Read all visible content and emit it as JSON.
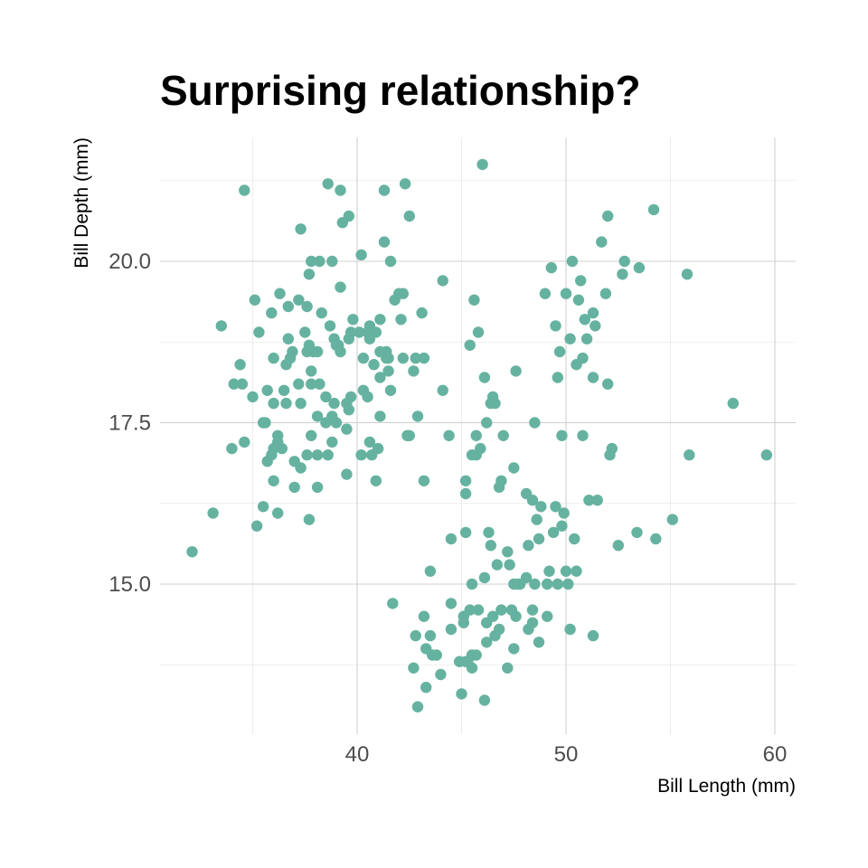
{
  "chart_data": {
    "type": "scatter",
    "title": "Surprising relationship?",
    "xlabel": "Bill Length (mm)",
    "ylabel": "Bill Depth (mm)",
    "xlim": [
      31.5,
      61
    ],
    "ylim": [
      13.1,
      21.5
    ],
    "x_ticks": [
      40,
      50,
      60
    ],
    "x_tick_labels": [
      "40",
      "50",
      "60"
    ],
    "y_ticks": [
      15.0,
      17.5,
      20.0
    ],
    "y_tick_labels": [
      "15.0",
      "17.5",
      "20.0"
    ],
    "grid": true,
    "legend": "none",
    "point_color": "#66b2a0",
    "points": [
      [
        32.1,
        15.5
      ],
      [
        33.1,
        16.1
      ],
      [
        33.5,
        19.0
      ],
      [
        34.0,
        17.1
      ],
      [
        34.1,
        18.1
      ],
      [
        34.4,
        18.4
      ],
      [
        34.5,
        18.1
      ],
      [
        34.6,
        21.1
      ],
      [
        34.6,
        17.2
      ],
      [
        35.0,
        17.9
      ],
      [
        35.1,
        19.4
      ],
      [
        35.2,
        15.9
      ],
      [
        35.3,
        18.9
      ],
      [
        35.5,
        17.5
      ],
      [
        35.5,
        16.2
      ],
      [
        35.6,
        17.5
      ],
      [
        35.7,
        16.9
      ],
      [
        35.7,
        18.0
      ],
      [
        35.9,
        17.0
      ],
      [
        35.9,
        19.2
      ],
      [
        36.0,
        17.8
      ],
      [
        36.0,
        17.1
      ],
      [
        36.0,
        16.6
      ],
      [
        36.0,
        18.5
      ],
      [
        36.2,
        17.2
      ],
      [
        36.2,
        17.3
      ],
      [
        36.2,
        16.1
      ],
      [
        36.3,
        19.5
      ],
      [
        36.4,
        17.1
      ],
      [
        36.5,
        18.0
      ],
      [
        36.6,
        17.8
      ],
      [
        36.6,
        18.4
      ],
      [
        36.7,
        18.8
      ],
      [
        36.7,
        19.3
      ],
      [
        36.8,
        18.5
      ],
      [
        36.9,
        18.6
      ],
      [
        37.0,
        16.9
      ],
      [
        37.0,
        16.5
      ],
      [
        37.2,
        18.1
      ],
      [
        37.2,
        19.4
      ],
      [
        37.3,
        20.5
      ],
      [
        37.3,
        16.8
      ],
      [
        37.3,
        17.8
      ],
      [
        37.5,
        18.9
      ],
      [
        37.6,
        19.3
      ],
      [
        37.6,
        17.0
      ],
      [
        37.6,
        18.6
      ],
      [
        37.7,
        18.7
      ],
      [
        37.7,
        19.8
      ],
      [
        37.7,
        16.0
      ],
      [
        37.8,
        18.3
      ],
      [
        37.8,
        20.0
      ],
      [
        37.8,
        17.3
      ],
      [
        37.8,
        18.1
      ],
      [
        37.9,
        18.6
      ],
      [
        38.1,
        18.6
      ],
      [
        38.1,
        17.0
      ],
      [
        38.1,
        16.5
      ],
      [
        38.1,
        17.6
      ],
      [
        38.2,
        18.1
      ],
      [
        38.2,
        20.0
      ],
      [
        38.3,
        19.2
      ],
      [
        38.5,
        17.9
      ],
      [
        38.5,
        17.5
      ],
      [
        38.6,
        21.2
      ],
      [
        38.6,
        17.0
      ],
      [
        38.7,
        19.0
      ],
      [
        38.8,
        20.0
      ],
      [
        38.8,
        17.2
      ],
      [
        38.8,
        17.6
      ],
      [
        38.9,
        17.8
      ],
      [
        38.9,
        18.8
      ],
      [
        39.0,
        17.5
      ],
      [
        39.0,
        18.7
      ],
      [
        39.1,
        18.7
      ],
      [
        39.2,
        19.6
      ],
      [
        39.2,
        21.1
      ],
      [
        39.2,
        18.6
      ],
      [
        39.3,
        20.6
      ],
      [
        39.5,
        16.7
      ],
      [
        39.5,
        17.4
      ],
      [
        39.5,
        17.8
      ],
      [
        39.6,
        17.7
      ],
      [
        39.6,
        18.8
      ],
      [
        39.6,
        20.7
      ],
      [
        39.7,
        18.9
      ],
      [
        39.7,
        17.9
      ],
      [
        39.8,
        19.1
      ],
      [
        40.1,
        18.9
      ],
      [
        40.2,
        17.0
      ],
      [
        40.2,
        20.1
      ],
      [
        40.3,
        18.0
      ],
      [
        40.3,
        18.5
      ],
      [
        40.5,
        18.9
      ],
      [
        40.5,
        17.9
      ],
      [
        40.6,
        18.8
      ],
      [
        40.6,
        19.0
      ],
      [
        40.6,
        17.2
      ],
      [
        40.7,
        17.0
      ],
      [
        40.8,
        18.4
      ],
      [
        40.8,
        18.9
      ],
      [
        40.9,
        16.6
      ],
      [
        40.9,
        18.9
      ],
      [
        41.0,
        17.1
      ],
      [
        41.1,
        17.6
      ],
      [
        41.1,
        18.2
      ],
      [
        41.1,
        19.1
      ],
      [
        41.1,
        18.6
      ],
      [
        41.3,
        20.3
      ],
      [
        41.3,
        21.1
      ],
      [
        41.4,
        18.6
      ],
      [
        41.4,
        18.5
      ],
      [
        41.5,
        18.3
      ],
      [
        41.5,
        18.5
      ],
      [
        41.6,
        18.0
      ],
      [
        41.6,
        20.0
      ],
      [
        41.7,
        14.7
      ],
      [
        41.8,
        19.4
      ],
      [
        42.0,
        19.5
      ],
      [
        42.1,
        19.1
      ],
      [
        42.2,
        18.5
      ],
      [
        42.2,
        19.5
      ],
      [
        42.3,
        21.2
      ],
      [
        42.4,
        17.3
      ],
      [
        42.5,
        20.7
      ],
      [
        42.5,
        17.3
      ],
      [
        42.7,
        18.3
      ],
      [
        42.7,
        13.7
      ],
      [
        42.8,
        18.5
      ],
      [
        42.8,
        14.2
      ],
      [
        42.9,
        17.6
      ],
      [
        42.9,
        13.1
      ],
      [
        43.1,
        19.2
      ],
      [
        43.2,
        18.5
      ],
      [
        43.2,
        16.6
      ],
      [
        43.2,
        14.5
      ],
      [
        43.3,
        14.0
      ],
      [
        43.3,
        13.4
      ],
      [
        43.5,
        15.2
      ],
      [
        43.5,
        14.2
      ],
      [
        43.6,
        13.9
      ],
      [
        43.8,
        13.9
      ],
      [
        44.0,
        13.6
      ],
      [
        44.1,
        19.7
      ],
      [
        44.1,
        18.0
      ],
      [
        44.4,
        17.3
      ],
      [
        44.5,
        15.7
      ],
      [
        44.5,
        14.3
      ],
      [
        44.5,
        14.7
      ],
      [
        44.9,
        13.8
      ],
      [
        45.0,
        13.3
      ],
      [
        45.1,
        14.5
      ],
      [
        45.1,
        14.4
      ],
      [
        45.2,
        15.8
      ],
      [
        45.2,
        16.6
      ],
      [
        45.2,
        16.4
      ],
      [
        45.2,
        13.8
      ],
      [
        45.3,
        13.8
      ],
      [
        45.4,
        14.6
      ],
      [
        45.4,
        18.7
      ],
      [
        45.5,
        13.9
      ],
      [
        45.5,
        13.7
      ],
      [
        45.5,
        15.0
      ],
      [
        45.5,
        17.0
      ],
      [
        45.6,
        19.4
      ],
      [
        45.7,
        13.9
      ],
      [
        45.7,
        17.0
      ],
      [
        45.7,
        17.3
      ],
      [
        45.8,
        14.6
      ],
      [
        45.8,
        18.9
      ],
      [
        45.9,
        17.1
      ],
      [
        46.0,
        21.5
      ],
      [
        46.1,
        18.2
      ],
      [
        46.1,
        15.1
      ],
      [
        46.1,
        13.2
      ],
      [
        46.2,
        14.1
      ],
      [
        46.2,
        14.4
      ],
      [
        46.2,
        17.5
      ],
      [
        46.3,
        15.8
      ],
      [
        46.4,
        15.6
      ],
      [
        46.4,
        17.8
      ],
      [
        46.5,
        17.9
      ],
      [
        46.5,
        14.5
      ],
      [
        46.6,
        17.8
      ],
      [
        46.6,
        14.2
      ],
      [
        46.7,
        15.3
      ],
      [
        46.8,
        14.3
      ],
      [
        46.8,
        16.5
      ],
      [
        46.9,
        16.6
      ],
      [
        46.9,
        14.6
      ],
      [
        47.0,
        17.3
      ],
      [
        47.2,
        15.5
      ],
      [
        47.2,
        13.7
      ],
      [
        47.3,
        15.3
      ],
      [
        47.4,
        14.6
      ],
      [
        47.5,
        14.0
      ],
      [
        47.5,
        15.0
      ],
      [
        47.5,
        16.8
      ],
      [
        47.6,
        14.5
      ],
      [
        47.6,
        18.3
      ],
      [
        47.7,
        15.0
      ],
      [
        47.8,
        15.0
      ],
      [
        48.1,
        15.1
      ],
      [
        48.1,
        16.4
      ],
      [
        48.2,
        14.3
      ],
      [
        48.2,
        15.6
      ],
      [
        48.4,
        14.6
      ],
      [
        48.4,
        16.3
      ],
      [
        48.4,
        14.4
      ],
      [
        48.5,
        15.0
      ],
      [
        48.5,
        17.5
      ],
      [
        48.6,
        16.0
      ],
      [
        48.7,
        14.1
      ],
      [
        48.7,
        15.7
      ],
      [
        48.8,
        16.2
      ],
      [
        49.0,
        19.5
      ],
      [
        49.1,
        14.5
      ],
      [
        49.1,
        15.0
      ],
      [
        49.2,
        15.2
      ],
      [
        49.3,
        19.9
      ],
      [
        49.4,
        15.8
      ],
      [
        49.5,
        16.2
      ],
      [
        49.5,
        19.0
      ],
      [
        49.6,
        15.0
      ],
      [
        49.6,
        18.2
      ],
      [
        49.7,
        18.6
      ],
      [
        49.8,
        17.3
      ],
      [
        49.8,
        15.9
      ],
      [
        49.9,
        16.1
      ],
      [
        50.0,
        15.2
      ],
      [
        50.0,
        19.5
      ],
      [
        50.1,
        15.0
      ],
      [
        50.2,
        14.3
      ],
      [
        50.2,
        18.8
      ],
      [
        50.3,
        20.0
      ],
      [
        50.4,
        15.7
      ],
      [
        50.5,
        18.4
      ],
      [
        50.5,
        15.2
      ],
      [
        50.6,
        19.4
      ],
      [
        50.7,
        19.7
      ],
      [
        50.8,
        17.3
      ],
      [
        50.8,
        18.5
      ],
      [
        50.9,
        19.1
      ],
      [
        51.0,
        18.8
      ],
      [
        51.1,
        16.3
      ],
      [
        51.3,
        19.2
      ],
      [
        51.3,
        18.2
      ],
      [
        51.3,
        14.2
      ],
      [
        51.4,
        19.0
      ],
      [
        51.5,
        16.3
      ],
      [
        51.7,
        20.3
      ],
      [
        51.9,
        19.5
      ],
      [
        52.0,
        18.1
      ],
      [
        52.0,
        20.7
      ],
      [
        52.1,
        17.0
      ],
      [
        52.2,
        17.1
      ],
      [
        52.5,
        15.6
      ],
      [
        52.7,
        19.8
      ],
      [
        52.8,
        20.0
      ],
      [
        53.4,
        15.8
      ],
      [
        53.5,
        19.9
      ],
      [
        54.2,
        20.8
      ],
      [
        54.3,
        15.7
      ],
      [
        55.1,
        16.0
      ],
      [
        55.8,
        19.8
      ],
      [
        55.9,
        17.0
      ],
      [
        58.0,
        17.8
      ],
      [
        59.6,
        17.0
      ]
    ]
  }
}
